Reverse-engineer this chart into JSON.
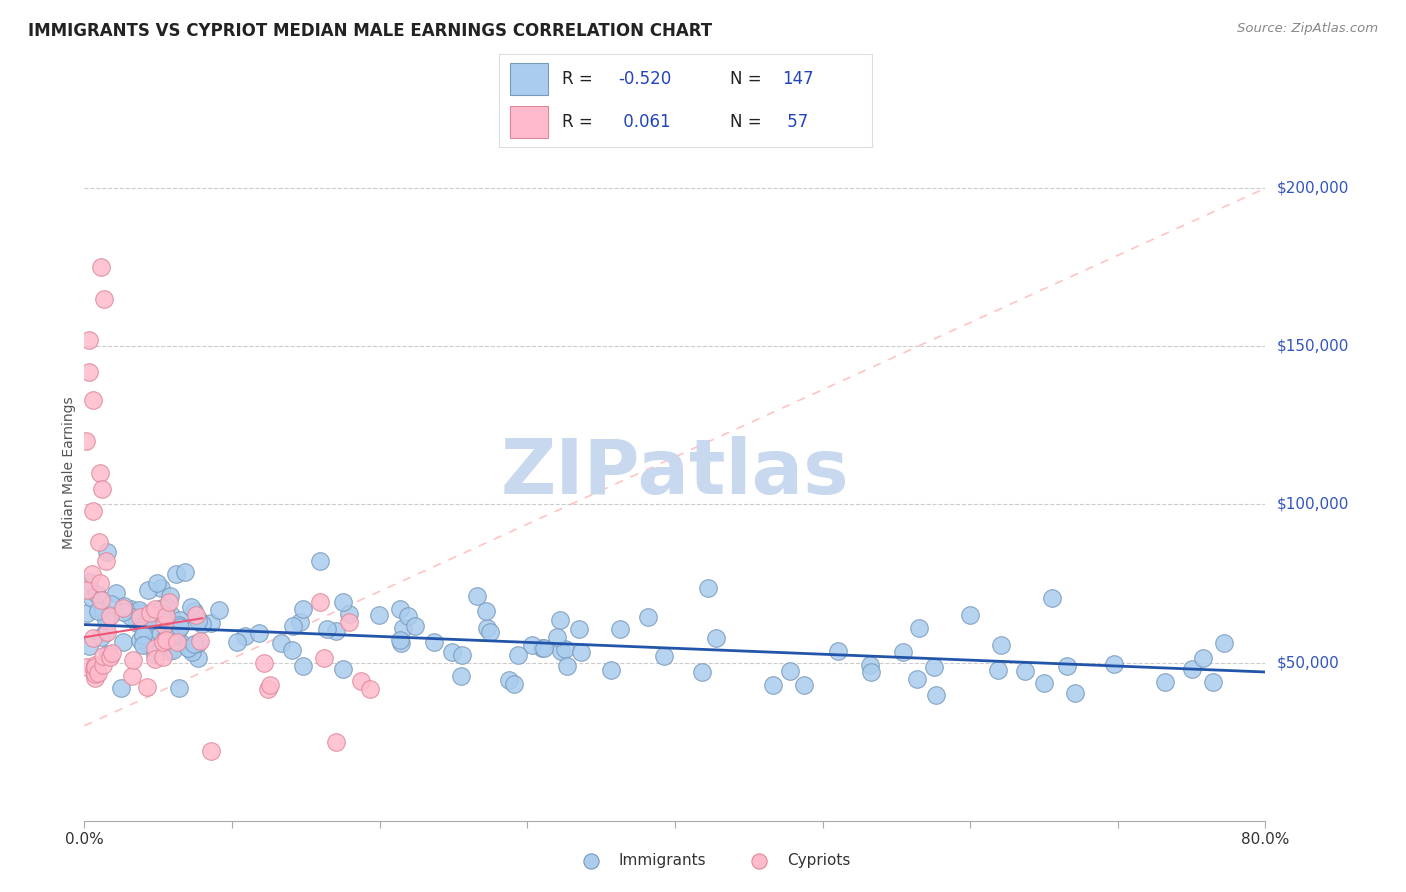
{
  "title": "IMMIGRANTS VS CYPRIOT MEDIAN MALE EARNINGS CORRELATION CHART",
  "source_text": "Source: ZipAtlas.com",
  "ylabel": "Median Male Earnings",
  "xlim": [
    0.0,
    0.8
  ],
  "ylim": [
    0,
    220000
  ],
  "ytick_vals": [
    50000,
    100000,
    150000,
    200000
  ],
  "ytick_labels": [
    "$50,000",
    "$100,000",
    "$150,000",
    "$200,000"
  ],
  "xtick_positions": [
    0.0,
    0.1,
    0.2,
    0.3,
    0.4,
    0.5,
    0.6,
    0.7,
    0.8
  ],
  "xtick_labels": [
    "0.0%",
    "",
    "",
    "",
    "",
    "",
    "",
    "",
    "80.0%"
  ],
  "background_color": "#ffffff",
  "grid_color": "#cccccc",
  "title_color": "#222222",
  "title_fontsize": 12,
  "y_label_color": "#3355bb",
  "watermark_text": "ZIPatlas",
  "watermark_color": "#c8d8ee",
  "immigrants_face": "#aaccee",
  "immigrants_edge": "#7799bb",
  "cypriots_face": "#ffbbcc",
  "cypriots_edge": "#dd8899",
  "trend_imm_color": "#2255aa",
  "trend_cyp_color": "#ffaaaa",
  "legend_text_color": "#2244bb",
  "legend_N_color": "#2244bb",
  "legend_R_imm": "-0.520",
  "legend_N_imm": "147",
  "legend_R_cyp": "0.061",
  "legend_N_cyp": "57",
  "source_color": "#888888"
}
